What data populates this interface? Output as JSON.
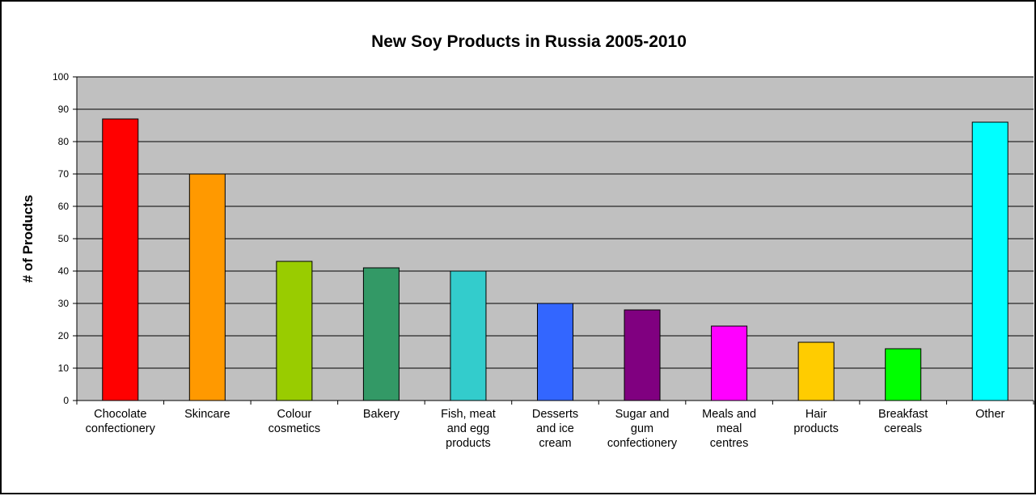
{
  "chart_data": {
    "type": "bar",
    "title": "New Soy Products in Russia 2005-2010",
    "xlabel": "",
    "ylabel": "# of Products",
    "ylim": [
      0,
      100
    ],
    "yticks": [
      0,
      10,
      20,
      30,
      40,
      50,
      60,
      70,
      80,
      90,
      100
    ],
    "grid": true,
    "legend": "none",
    "categories": [
      "Chocolate confectionery",
      "Skincare",
      "Colour cosmetics",
      "Bakery",
      "Fish, meat and egg products",
      "Desserts and ice cream",
      "Sugar and gum confectionery",
      "Meals and meal centres",
      "Hair products",
      "Breakfast cereals",
      "Other"
    ],
    "category_label_lines": [
      [
        "Chocolate",
        "confectionery"
      ],
      [
        "Skincare"
      ],
      [
        "Colour",
        "cosmetics"
      ],
      [
        "Bakery"
      ],
      [
        "Fish, meat",
        "and egg",
        "products"
      ],
      [
        "Desserts",
        "and ice",
        "cream"
      ],
      [
        "Sugar and",
        "gum",
        "confectionery"
      ],
      [
        "Meals and",
        "meal",
        "centres"
      ],
      [
        "Hair",
        "products"
      ],
      [
        "Breakfast",
        "cereals"
      ],
      [
        "Other"
      ]
    ],
    "values": [
      87,
      70,
      43,
      41,
      40,
      30,
      28,
      23,
      18,
      16,
      86
    ],
    "colors": [
      "#ff0000",
      "#ff9900",
      "#99cc00",
      "#339966",
      "#33cccc",
      "#3366ff",
      "#800080",
      "#ff00ff",
      "#ffcc00",
      "#00ff00",
      "#00ffff"
    ],
    "plot_background": "#c0c0c0",
    "gridline_color": "#000000"
  }
}
